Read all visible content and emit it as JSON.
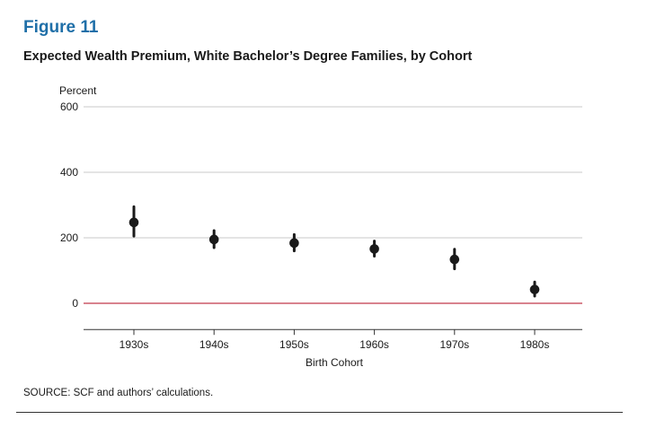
{
  "figure_label": "Figure 11",
  "title": "Expected Wealth Premium, White Bachelor’s Degree Families, by Cohort",
  "source": "SOURCE: SCF and authors’ calculations.",
  "colors": {
    "figure_label": "#1f6fa8",
    "zero_line": "#c0394b",
    "points": "#1a1a1a",
    "grid": "#c8c8c8"
  },
  "chart_data": {
    "type": "scatter",
    "title": "Expected Wealth Premium, White Bachelor’s Degree Families, by Cohort",
    "ylabel": "Percent",
    "xlabel": "Birth Cohort",
    "ylim": [
      -80,
      600
    ],
    "yticks": [
      0,
      200,
      400,
      600
    ],
    "ytick_labels": [
      "0",
      "200",
      "400",
      "600"
    ],
    "grid": true,
    "categories": [
      "1930s",
      "1940s",
      "1950s",
      "1960s",
      "1970s",
      "1980s"
    ],
    "values": [
      247,
      195,
      184,
      166,
      134,
      42
    ],
    "error_low": [
      205,
      170,
      160,
      144,
      105,
      22
    ],
    "error_high": [
      295,
      222,
      210,
      190,
      165,
      65
    ]
  }
}
